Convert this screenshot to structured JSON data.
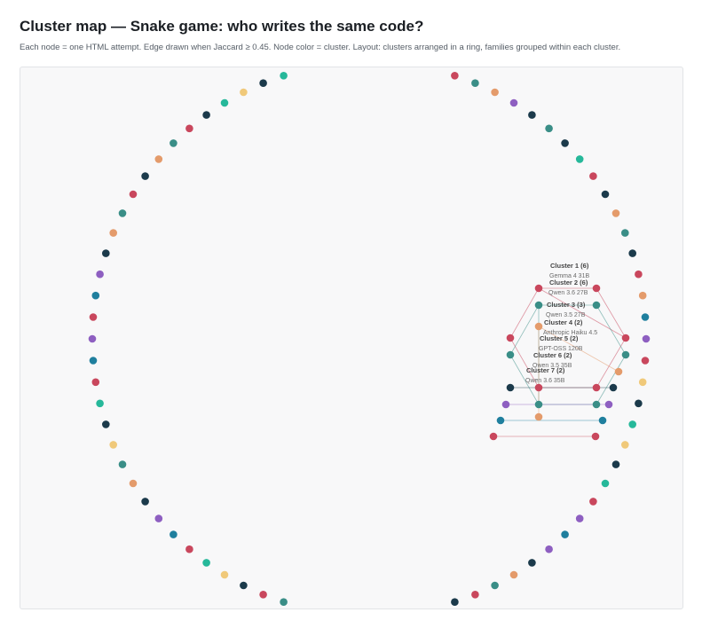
{
  "header": {
    "title": "Cluster map — Snake game: who writes the same code?",
    "subtitle": "Each node = one HTML attempt. Edge drawn when Jaccard ≥ 0.45. Node color = cluster. Layout: clusters arranged in a ring, families grouped within each cluster."
  },
  "colors": {
    "palette": [
      "#c9475d",
      "#3a8e87",
      "#e49b6b",
      "#1e1e1e",
      "#8e5fc1",
      "#1f7f9e",
      "#26b89a",
      "#f0c97a",
      "#1b3a4b"
    ],
    "background": "#f8f8f9"
  },
  "chart_data": {
    "type": "network",
    "title": "Cluster map — Snake game: who writes the same code?",
    "edge_threshold": 0.45,
    "layout": "ring",
    "clusters": [
      {
        "label": "Cluster 1 (6)",
        "family": "Gemma 4 31B"
      },
      {
        "label": "Cluster 2 (6)",
        "family": "Qwen 3.6 27B"
      },
      {
        "label": "Cluster 3 (3)",
        "family": "Qwen 3.5 27B"
      },
      {
        "label": "Cluster 4 (2)",
        "family": "Anthropic Haiku 4.5"
      },
      {
        "label": "Cluster 5 (2)",
        "family": "GPT-OSS 120B"
      },
      {
        "label": "Cluster 6 (2)",
        "family": "Qwen 3.5 35B"
      },
      {
        "label": "Cluster 7 (2)",
        "family": "Qwen 3.6 35B"
      }
    ],
    "ring_node_colors": [
      "#f0c97a",
      "#c9475d",
      "#26b89a",
      "#e49b6b",
      "#c9475d",
      "#3a8e87",
      "#e49b6b",
      "#8e5fc1",
      "#1b3a4b",
      "#3a8e87",
      "#1b3a4b",
      "#26b89a",
      "#c9475d",
      "#1b3a4b",
      "#e49b6b",
      "#3a8e87",
      "#1b3a4b",
      "#c9475d",
      "#e49b6b",
      "#1f7f9e",
      "#8e5fc1",
      "#c9475d",
      "#f0c97a",
      "#1b3a4b",
      "#26b89a",
      "#f0c97a",
      "#1b3a4b",
      "#26b89a",
      "#c9475d",
      "#8e5fc1",
      "#1f7f9e",
      "#8e5fc1",
      "#1b3a4b",
      "#e49b6b",
      "#3a8e87",
      "#c9475d",
      "#1b3a4b",
      "#f0c97a",
      "#26b89a",
      "#c9475d",
      "#1f7f9e",
      "#8e5fc1",
      "#1b3a4b",
      "#e49b6b",
      "#3a8e87",
      "#c9475d",
      "#1b3a4b",
      "#f0c97a",
      "#26b89a",
      "#c9475d",
      "#1f7f9e",
      "#8e5fc1",
      "#1b3a4b",
      "#e49b6b",
      "#3a8e87",
      "#f0c97a",
      "#1b3a4b",
      "#26b89a",
      "#c9475d",
      "#1f7f9e",
      "#8e5fc1",
      "#c9475d",
      "#1f7f9e",
      "#8e5fc1",
      "#1b3a4b",
      "#e49b6b",
      "#3a8e87",
      "#c9475d",
      "#1b3a4b",
      "#e49b6b",
      "#3a8e87",
      "#c9475d",
      "#1b3a4b",
      "#26b89a",
      "#f0c97a",
      "#1b3a4b",
      "#26b89a",
      "#c9475d",
      "#3a8e87",
      "#e49b6b"
    ],
    "cluster_nodes": [
      {
        "cluster": 1,
        "color": "#c9475d"
      },
      {
        "cluster": 1,
        "color": "#c9475d"
      },
      {
        "cluster": 1,
        "color": "#c9475d"
      },
      {
        "cluster": 1,
        "color": "#c9475d"
      },
      {
        "cluster": 1,
        "color": "#c9475d"
      },
      {
        "cluster": 1,
        "color": "#c9475d"
      },
      {
        "cluster": 2,
        "color": "#3a8e87"
      },
      {
        "cluster": 2,
        "color": "#3a8e87"
      },
      {
        "cluster": 2,
        "color": "#3a8e87"
      },
      {
        "cluster": 2,
        "color": "#3a8e87"
      },
      {
        "cluster": 2,
        "color": "#3a8e87"
      },
      {
        "cluster": 2,
        "color": "#3a8e87"
      },
      {
        "cluster": 3,
        "color": "#e49b6b"
      },
      {
        "cluster": 3,
        "color": "#e49b6b"
      },
      {
        "cluster": 3,
        "color": "#e49b6b"
      },
      {
        "cluster": 4,
        "color": "#1b3a4b"
      },
      {
        "cluster": 4,
        "color": "#1b3a4b"
      },
      {
        "cluster": 5,
        "color": "#8e5fc1"
      },
      {
        "cluster": 5,
        "color": "#8e5fc1"
      },
      {
        "cluster": 6,
        "color": "#1f7f9e"
      },
      {
        "cluster": 6,
        "color": "#1f7f9e"
      },
      {
        "cluster": 7,
        "color": "#c9475d"
      },
      {
        "cluster": 7,
        "color": "#c9475d"
      }
    ],
    "edges": [
      {
        "from": 0,
        "to": 1,
        "color": "#c9475d"
      },
      {
        "from": 0,
        "to": 2,
        "color": "#c9475d"
      },
      {
        "from": 1,
        "to": 3,
        "color": "#c9475d"
      },
      {
        "from": 2,
        "to": 4,
        "color": "#c9475d"
      },
      {
        "from": 3,
        "to": 5,
        "color": "#c9475d"
      },
      {
        "from": 4,
        "to": 5,
        "color": "#c9475d"
      },
      {
        "from": 0,
        "to": 3,
        "color": "#c9475d"
      },
      {
        "from": 6,
        "to": 7,
        "color": "#3a8e87"
      },
      {
        "from": 6,
        "to": 8,
        "color": "#3a8e87"
      },
      {
        "from": 7,
        "to": 9,
        "color": "#3a8e87"
      },
      {
        "from": 8,
        "to": 10,
        "color": "#3a8e87"
      },
      {
        "from": 9,
        "to": 11,
        "color": "#3a8e87"
      },
      {
        "from": 10,
        "to": 11,
        "color": "#3a8e87"
      },
      {
        "from": 6,
        "to": 10,
        "color": "#3a8e87"
      },
      {
        "from": 12,
        "to": 13,
        "color": "#e49b6b"
      },
      {
        "from": 12,
        "to": 14,
        "color": "#e49b6b"
      },
      {
        "from": 15,
        "to": 16,
        "color": "#1b3a4b"
      },
      {
        "from": 17,
        "to": 18,
        "color": "#8e5fc1"
      },
      {
        "from": 19,
        "to": 20,
        "color": "#1f7f9e"
      },
      {
        "from": 21,
        "to": 22,
        "color": "#c9475d"
      }
    ]
  }
}
